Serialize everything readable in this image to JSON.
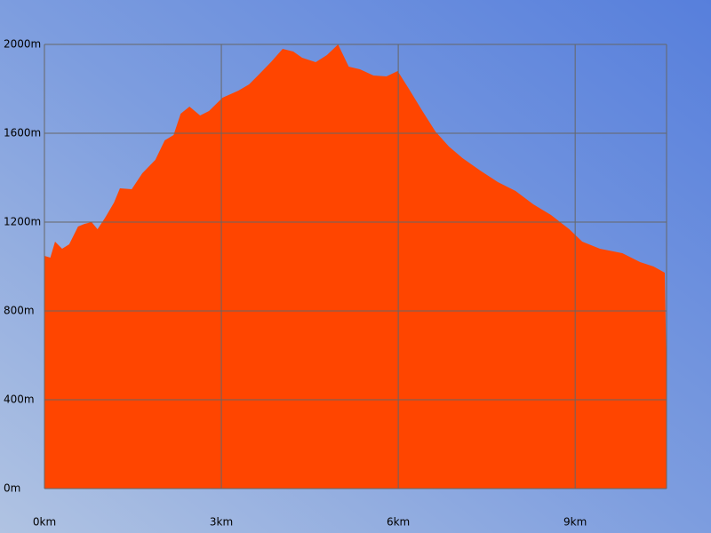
{
  "chart_data": {
    "type": "area",
    "x": [
      0,
      0.1,
      0.18,
      0.3,
      0.42,
      0.57,
      0.68,
      0.8,
      0.9,
      1.03,
      1.18,
      1.28,
      1.48,
      1.66,
      1.88,
      2.04,
      2.19,
      2.31,
      2.46,
      2.64,
      2.79,
      3.02,
      3.29,
      3.47,
      3.62,
      3.84,
      4.04,
      4.22,
      4.37,
      4.6,
      4.79,
      4.98,
      5.16,
      5.35,
      5.58,
      5.8,
      5.99,
      6.18,
      6.41,
      6.63,
      6.86,
      7.09,
      7.39,
      7.69,
      7.99,
      8.29,
      8.59,
      8.9,
      9.12,
      9.42,
      9.8,
      10.1,
      10.33,
      10.52,
      10.55
    ],
    "values": [
      1048,
      1040,
      1112,
      1080,
      1100,
      1180,
      1192,
      1200,
      1168,
      1220,
      1288,
      1352,
      1348,
      1420,
      1480,
      1568,
      1592,
      1688,
      1720,
      1680,
      1700,
      1760,
      1792,
      1820,
      1860,
      1920,
      1980,
      1968,
      1940,
      1920,
      1952,
      2000,
      1900,
      1888,
      1860,
      1856,
      1880,
      1800,
      1700,
      1608,
      1540,
      1488,
      1432,
      1380,
      1340,
      1280,
      1232,
      1168,
      1112,
      1080,
      1060,
      1020,
      1000,
      972,
      500
    ],
    "color": "#ff4500",
    "xlim": [
      0,
      10.55
    ],
    "ylim": [
      0,
      2000
    ],
    "xticks": [
      {
        "value": 0,
        "label": "0km"
      },
      {
        "value": 3,
        "label": "3km"
      },
      {
        "value": 6,
        "label": "6km"
      },
      {
        "value": 9,
        "label": "9km"
      }
    ],
    "yticks": [
      {
        "value": 0,
        "label": "0m"
      },
      {
        "value": 400,
        "label": "400m"
      },
      {
        "value": 800,
        "label": "800m"
      },
      {
        "value": 1200,
        "label": "1200m"
      },
      {
        "value": 1600,
        "label": "1600m"
      },
      {
        "value": 2000,
        "label": "2000m"
      }
    ],
    "grid": true
  }
}
